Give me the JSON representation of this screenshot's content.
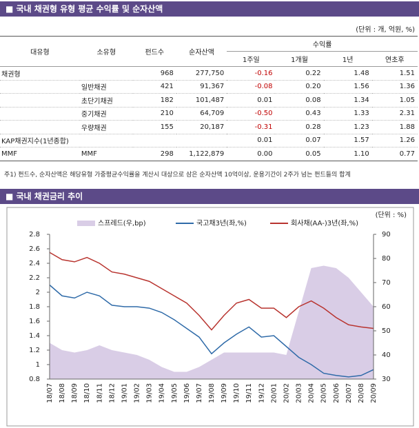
{
  "header": {
    "title": "■ 국내 채권형 유형 평균 수익률 및 순자산액",
    "unit": "(단위 : 개, 억원, %)"
  },
  "table": {
    "columns": [
      "대유형",
      "소유형",
      "펀드수",
      "순자산액",
      "1주일",
      "1개월",
      "1년",
      "연초후"
    ],
    "group": "수익률",
    "rows": [
      [
        "채권형",
        "",
        "968",
        "277,750",
        "-0.16",
        "0.22",
        "1.48",
        "1.51"
      ],
      [
        "",
        "일반채권",
        "421",
        "91,367",
        "-0.08",
        "0.20",
        "1.56",
        "1.36"
      ],
      [
        "",
        "초단기채권",
        "182",
        "101,487",
        "0.01",
        "0.08",
        "1.34",
        "1.05"
      ],
      [
        "",
        "중기채권",
        "210",
        "64,709",
        "-0.50",
        "0.43",
        "1.33",
        "2.31"
      ],
      [
        "",
        "우량채권",
        "155",
        "20,187",
        "-0.31",
        "0.28",
        "1.23",
        "1.88"
      ],
      [
        "KAP채권지수(1년종합)",
        "",
        "",
        "",
        "0.01",
        "0.07",
        "1.57",
        "1.26"
      ],
      [
        "MMF",
        "MMF",
        "298",
        "1,122,879",
        "0.00",
        "0.05",
        "1.10",
        "0.77"
      ]
    ]
  },
  "footnote": "주1) 펀드수, 순자산액은 해당유형 가중평균수익률을 계산시 대상으로 삼은 순자산액 10억이상, 운용기간이 2주가 넘는 펀드들의 합계",
  "section2": {
    "title": "■ 국내 채권금리 추이"
  },
  "chart_data": {
    "type": "line",
    "unit": "(단위 : %)",
    "categories": [
      "18/07",
      "18/08",
      "18/09",
      "18/10",
      "18/11",
      "18/12",
      "19/01",
      "19/02",
      "19/03",
      "19/04",
      "19/05",
      "19/06",
      "19/07",
      "19/08",
      "19/09",
      "19/10",
      "19/11",
      "19/12",
      "20/01",
      "20/02",
      "20/03",
      "20/04",
      "20/05",
      "20/06",
      "20/07",
      "20/08",
      "20/09"
    ],
    "ylim": [
      0.8,
      2.8
    ],
    "yticks": [
      0.8,
      1.0,
      1.2,
      1.4,
      1.6,
      1.8,
      2.0,
      2.2,
      2.4,
      2.6,
      2.8
    ],
    "y2lim": [
      30,
      90
    ],
    "y2ticks": [
      30,
      40,
      50,
      60,
      70,
      80,
      90
    ],
    "series": [
      {
        "name": "스프레드(우,bp)",
        "type": "area",
        "axis": "y2",
        "color": "#d9cde6",
        "values": [
          45,
          42,
          41,
          42,
          44,
          42,
          41,
          40,
          38,
          35,
          33,
          33,
          35,
          38,
          41,
          41,
          41,
          41,
          41,
          40,
          58,
          76,
          77,
          76,
          72,
          66,
          60
        ]
      },
      {
        "name": "국고채3년(좌,%)",
        "color": "#2e6aa8",
        "values": [
          2.1,
          1.95,
          1.92,
          2.0,
          1.95,
          1.82,
          1.8,
          1.8,
          1.78,
          1.72,
          1.62,
          1.5,
          1.38,
          1.15,
          1.3,
          1.42,
          1.52,
          1.38,
          1.4,
          1.25,
          1.1,
          1.0,
          0.88,
          0.85,
          0.83,
          0.85,
          0.93
        ]
      },
      {
        "name": "회사채(AA-)3년(좌,%)",
        "color": "#b8332e",
        "values": [
          2.55,
          2.45,
          2.42,
          2.48,
          2.4,
          2.28,
          2.25,
          2.2,
          2.15,
          2.05,
          1.95,
          1.85,
          1.68,
          1.48,
          1.68,
          1.85,
          1.9,
          1.78,
          1.78,
          1.65,
          1.8,
          1.88,
          1.78,
          1.65,
          1.55,
          1.52,
          1.5
        ]
      }
    ]
  }
}
